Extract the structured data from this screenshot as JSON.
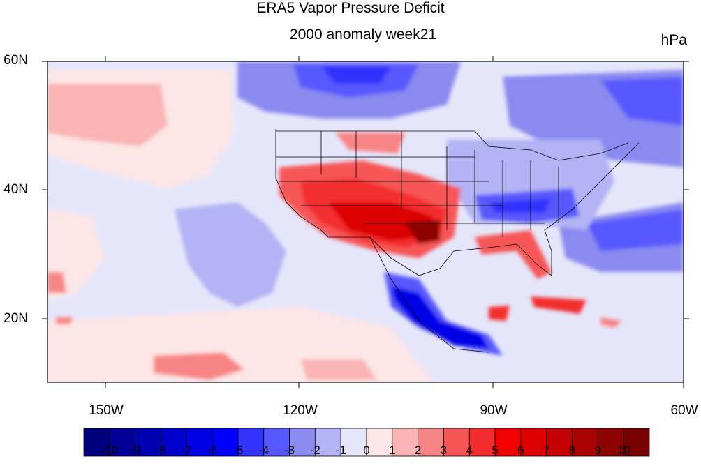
{
  "title": "ERA5 Vapor Pressure Deficit",
  "subtitle": "2000 anomaly week21",
  "units": "hPa",
  "lat_labels": [
    "60N",
    "40N",
    "20N"
  ],
  "lon_labels": [
    "150W",
    "120W",
    "90W",
    "60W"
  ],
  "colorbar": {
    "labels": [
      "-10",
      "-9",
      "-8",
      "-7",
      "-6",
      "-5",
      "-4",
      "-3",
      "-2",
      "-1",
      "0",
      "1",
      "2",
      "3",
      "4",
      "5",
      "6",
      "7",
      "8",
      "9",
      "10"
    ],
    "colors": [
      "#00007f",
      "#000099",
      "#0000b3",
      "#0000cc",
      "#0000e6",
      "#0000ff",
      "#3333ff",
      "#5858ff",
      "#8a8af0",
      "#b3b3f5",
      "#e6e6fb",
      "#fde6e6",
      "#fab4b4",
      "#f88585",
      "#f65656",
      "#f32d2d",
      "#f20000",
      "#dc0000",
      "#c40000",
      "#a90000",
      "#8f0000",
      "#790000"
    ]
  },
  "map": {
    "extent": {
      "lon": [
        -159,
        -60
      ],
      "lat": [
        10,
        60
      ]
    },
    "background_anomaly": "slightly negative (-1 to 0) over most ocean areas",
    "features": [
      "strong positive anomaly (+5 to +10 hPa) over US Southwest, Texas and Oklahoma",
      "negative anomaly (-3 to -4) over Tennessee/Kentucky region",
      "strong negative anomaly (-6 to -9) over central Mexico",
      "positive anomaly over Florida and Caribbean",
      "negative anomaly over northern Canada"
    ]
  }
}
